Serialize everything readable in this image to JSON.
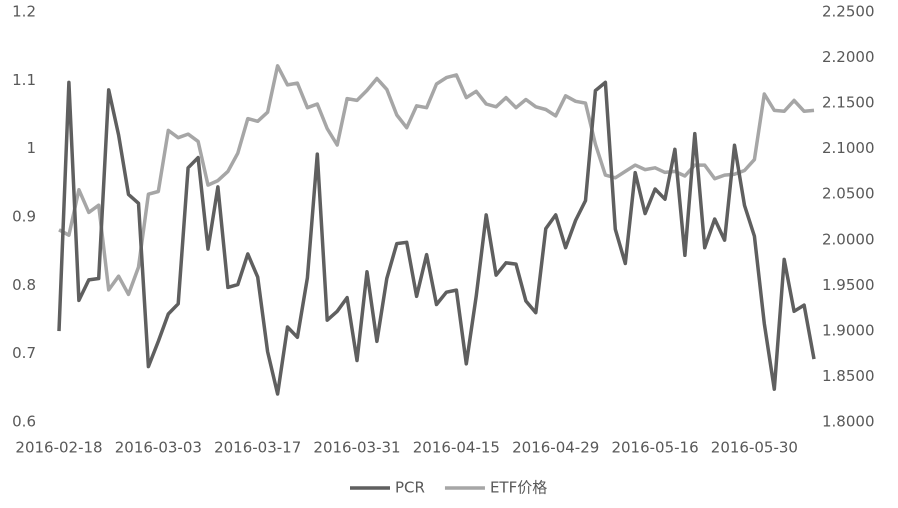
{
  "chart_data": {
    "type": "line",
    "categories": [
      "2016-02-18",
      null,
      null,
      null,
      null,
      null,
      null,
      null,
      null,
      null,
      "2016-03-03",
      null,
      null,
      null,
      null,
      null,
      null,
      null,
      null,
      null,
      "2016-03-17",
      null,
      null,
      null,
      null,
      null,
      null,
      null,
      null,
      null,
      "2016-03-31",
      null,
      null,
      null,
      null,
      null,
      null,
      null,
      null,
      null,
      "2016-04-15",
      null,
      null,
      null,
      null,
      null,
      null,
      null,
      null,
      null,
      "2016-04-29",
      null,
      null,
      null,
      null,
      null,
      null,
      null,
      null,
      null,
      "2016-05-16",
      null,
      null,
      null,
      null,
      null,
      null,
      null,
      null,
      null,
      "2016-05-30",
      null,
      null,
      null,
      null,
      null,
      null
    ],
    "series": [
      {
        "name": "PCR",
        "color": "#5f5f5f",
        "values": [
          0.733,
          1.097,
          0.778,
          0.808,
          0.81,
          1.086,
          1.02,
          0.933,
          0.92,
          0.681,
          0.718,
          0.758,
          0.773,
          0.972,
          0.987,
          0.853,
          0.944,
          0.797,
          0.801,
          0.846,
          0.812,
          0.703,
          0.641,
          0.739,
          0.724,
          0.811,
          0.992,
          0.749,
          0.762,
          0.782,
          0.69,
          0.82,
          0.718,
          0.81,
          0.861,
          0.863,
          0.784,
          0.845,
          0.772,
          0.79,
          0.793,
          0.685,
          0.784,
          0.903,
          0.815,
          0.833,
          0.831,
          0.777,
          0.76,
          0.883,
          0.903,
          0.855,
          0.895,
          0.924,
          1.085,
          1.097,
          0.882,
          0.832,
          0.965,
          0.905,
          0.941,
          0.926,
          0.999,
          0.844,
          1.022,
          0.855,
          0.897,
          0.866,
          1.005,
          0.917,
          0.872,
          0.744,
          0.648,
          0.838,
          0.762,
          0.771,
          0.692
        ]
      },
      {
        "name": "ETF价格",
        "color": "#a6a6a6",
        "axis": "y2",
        "values": [
          2.011,
          2.005,
          2.055,
          2.03,
          2.038,
          1.945,
          1.96,
          1.94,
          1.97,
          2.05,
          2.053,
          2.12,
          2.112,
          2.116,
          2.108,
          2.06,
          2.065,
          2.075,
          2.095,
          2.133,
          2.13,
          2.14,
          2.191,
          2.17,
          2.172,
          2.145,
          2.149,
          2.122,
          2.104,
          2.155,
          2.153,
          2.164,
          2.177,
          2.165,
          2.137,
          2.123,
          2.147,
          2.145,
          2.171,
          2.178,
          2.181,
          2.156,
          2.163,
          2.149,
          2.146,
          2.156,
          2.145,
          2.154,
          2.146,
          2.143,
          2.136,
          2.158,
          2.152,
          2.15,
          2.105,
          2.071,
          2.068,
          2.075,
          2.082,
          2.077,
          2.079,
          2.074,
          2.075,
          2.07,
          2.082,
          2.082,
          2.067,
          2.071,
          2.072,
          2.076,
          2.088,
          2.16,
          2.142,
          2.141,
          2.153,
          2.141,
          2.142
        ]
      }
    ],
    "ylim": [
      0.6,
      1.2
    ],
    "yticks": [
      0.6,
      0.7,
      0.8,
      0.9,
      1,
      1.1,
      1.2
    ],
    "y2lim": [
      1.8,
      2.25
    ],
    "y2ticks": [
      {
        "value": 1.8,
        "label": "1.8000"
      },
      {
        "value": 1.85,
        "label": "1.8500"
      },
      {
        "value": 1.9,
        "label": "1.9000"
      },
      {
        "value": 1.95,
        "label": "1.9500"
      },
      {
        "value": 2.0,
        "label": "2.0000"
      },
      {
        "value": 2.05,
        "label": "2.0500"
      },
      {
        "value": 2.1,
        "label": "2.1000"
      },
      {
        "value": 2.15,
        "label": "2.1500"
      },
      {
        "value": 2.2,
        "label": "2.2000"
      },
      {
        "value": 2.25,
        "label": "2.2500"
      }
    ],
    "grid": false,
    "legend": "bottom"
  }
}
